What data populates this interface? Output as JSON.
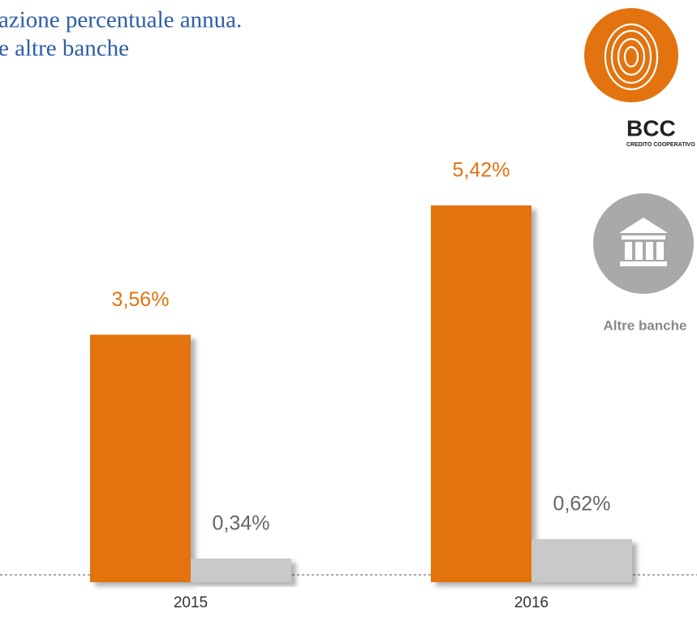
{
  "chart_data": {
    "type": "bar",
    "title": [
      "azione percentuale annua.",
      "e altre banche"
    ],
    "categories": [
      "2015",
      "2016"
    ],
    "series": [
      {
        "name": "BCC",
        "caption": "CREDITO COOPERATIVO",
        "color": "#e2730f",
        "values": [
          3.56,
          5.42
        ],
        "value_labels": [
          "3,56%",
          "5,42%"
        ]
      },
      {
        "name": "Altre banche",
        "color": "#c9c9c9",
        "values": [
          0.34,
          0.62
        ],
        "value_labels": [
          "0,34%",
          "0,62%"
        ]
      }
    ]
  }
}
